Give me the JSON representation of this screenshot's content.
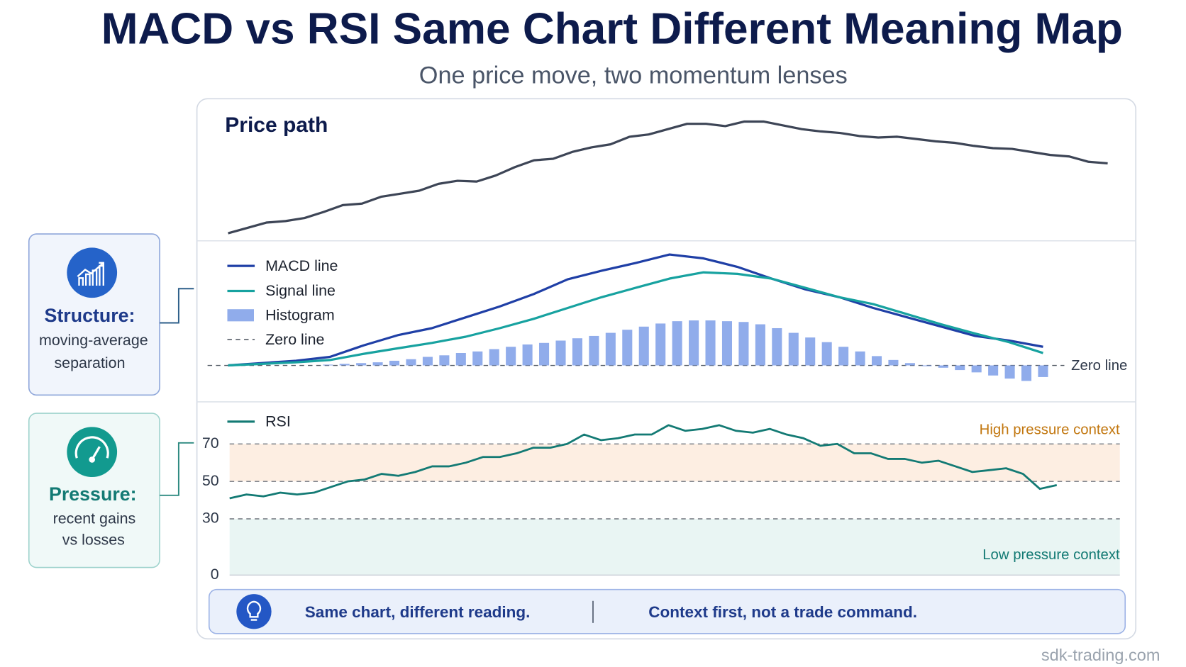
{
  "title": "MACD vs RSI Same Chart Different Meaning Map",
  "subtitle": "One price move, two momentum lenses",
  "side_cards": [
    {
      "heading": "Structure:",
      "lines": [
        "moving-average",
        "separation"
      ]
    },
    {
      "heading": "Pressure:",
      "lines": [
        "recent gains",
        "vs losses"
      ]
    }
  ],
  "callout": [
    "Same chart, different reading.",
    "Context first, not a trade command."
  ],
  "footer": "sdk-trading.com",
  "chart_data": [
    {
      "type": "line",
      "title": "Price path",
      "color": "#3d4556",
      "values": [
        13,
        20,
        27,
        29,
        33,
        41,
        50,
        52,
        61,
        65,
        69,
        78,
        82,
        81,
        89,
        100,
        109,
        111,
        120,
        126,
        130,
        140,
        143,
        150,
        157,
        157,
        154,
        160,
        160,
        155,
        150,
        147,
        145,
        141,
        139,
        140,
        137,
        134,
        132,
        128,
        125,
        124,
        120,
        116,
        114,
        107,
        105
      ]
    },
    {
      "type": "macd",
      "series": [
        {
          "name": "MACD line",
          "color": "#1f3fa6",
          "values": [
            0,
            3,
            6,
            11,
            26,
            39,
            48,
            62,
            76,
            92,
            111,
            122,
            132,
            143,
            138,
            127,
            112,
            98,
            88,
            74,
            62,
            50,
            38,
            32,
            24
          ]
        },
        {
          "name": "Signal line",
          "color": "#17a2a0",
          "values": [
            0,
            2,
            4,
            7,
            15,
            22,
            29,
            37,
            48,
            60,
            74,
            88,
            100,
            112,
            120,
            118,
            112,
            100,
            88,
            79,
            66,
            53,
            41,
            30,
            16
          ]
        },
        {
          "name": "Histogram",
          "color": "#7d9de8",
          "values": [
            0,
            0,
            0,
            0,
            0,
            0,
            1,
            2,
            3,
            4,
            6,
            8,
            11,
            13,
            16,
            18,
            21,
            24,
            27,
            29,
            32,
            35,
            38,
            42,
            46,
            50,
            54,
            57,
            58,
            58,
            57,
            56,
            53,
            48,
            42,
            36,
            30,
            24,
            18,
            12,
            7,
            3,
            -1,
            -3,
            -6,
            -9,
            -13,
            -17,
            -20,
            -15
          ]
        }
      ],
      "zero_line_name": "Zero line",
      "zero_line_label": "Zero line"
    },
    {
      "type": "rsi",
      "series": [
        {
          "name": "RSI",
          "color": "#137a74",
          "values": [
            41,
            43,
            42,
            44,
            43,
            44,
            47,
            50,
            51,
            54,
            53,
            55,
            58,
            58,
            60,
            63,
            63,
            65,
            68,
            68,
            70,
            75,
            72,
            73,
            75,
            75,
            80,
            77,
            78,
            80,
            77,
            76,
            78,
            75,
            73,
            69,
            70,
            65,
            65,
            62,
            62,
            60,
            61,
            58,
            55,
            56,
            57,
            54,
            46,
            48
          ]
        }
      ],
      "ylim": [
        0,
        90
      ],
      "yticks": [
        0,
        30,
        50,
        70
      ],
      "bands": [
        {
          "from": 50,
          "to": 70,
          "label": "High pressure context",
          "color": "#fdeee2",
          "label_color": "#c2770f"
        },
        {
          "from": 0,
          "to": 30,
          "label": "Low pressure context",
          "color": "#e9f5f3",
          "label_color": "#137a74"
        }
      ]
    }
  ]
}
